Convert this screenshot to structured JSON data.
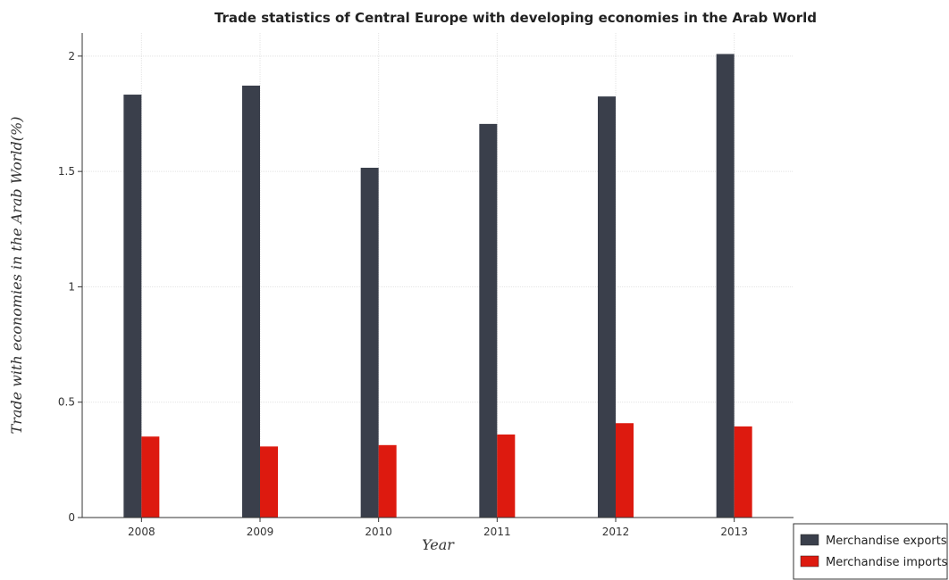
{
  "chart_data": {
    "type": "bar",
    "title": "Trade statistics of Central Europe with developing economies in the Arab World",
    "xlabel": "Year",
    "ylabel": "Trade with economies in the Arab World(%)",
    "categories": [
      "2008",
      "2009",
      "2010",
      "2011",
      "2012",
      "2013"
    ],
    "series": [
      {
        "name": "Merchandise exports",
        "color": "#3a3f4b",
        "values": [
          1.833,
          1.872,
          1.516,
          1.706,
          1.825,
          2.009
        ]
      },
      {
        "name": "Merchandise imports",
        "color": "#dd1a0f",
        "values": [
          0.351,
          0.308,
          0.314,
          0.36,
          0.409,
          0.395
        ]
      }
    ],
    "ylim": [
      0,
      2.1
    ],
    "yticks": [
      0,
      0.5,
      1,
      1.5,
      2
    ],
    "ytick_labels": [
      "0",
      "0.5",
      "1",
      "1.5",
      "2"
    ],
    "grid": true,
    "legend_position": "bottom-right"
  }
}
